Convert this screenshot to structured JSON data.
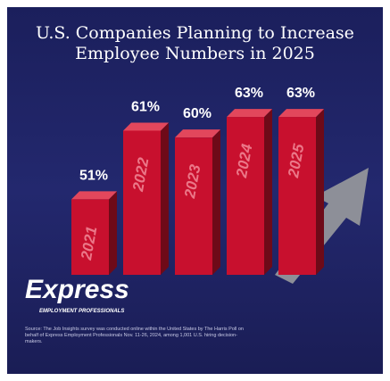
{
  "chart_data": {
    "type": "bar",
    "title": "U.S. Companies Planning to Increase Employee Numbers in 2025",
    "categories": [
      "2021",
      "2022",
      "2023",
      "2024",
      "2025"
    ],
    "values": [
      51,
      61,
      60,
      63,
      63
    ],
    "value_labels": [
      "51%",
      "61%",
      "60%",
      "63%",
      "63%"
    ],
    "color": "#c8102e",
    "ylim": [
      40,
      66
    ]
  },
  "logo": {
    "name": "Express",
    "tagline": "EMPLOYMENT PROFESSIONALS"
  },
  "source": "Source: The Job Insights survey was conducted online within the United States by The Harris Poll on behalf of Express Employment Professionals Nov. 11-26, 2024, among 1,001 U.S. hiring decision-makers."
}
